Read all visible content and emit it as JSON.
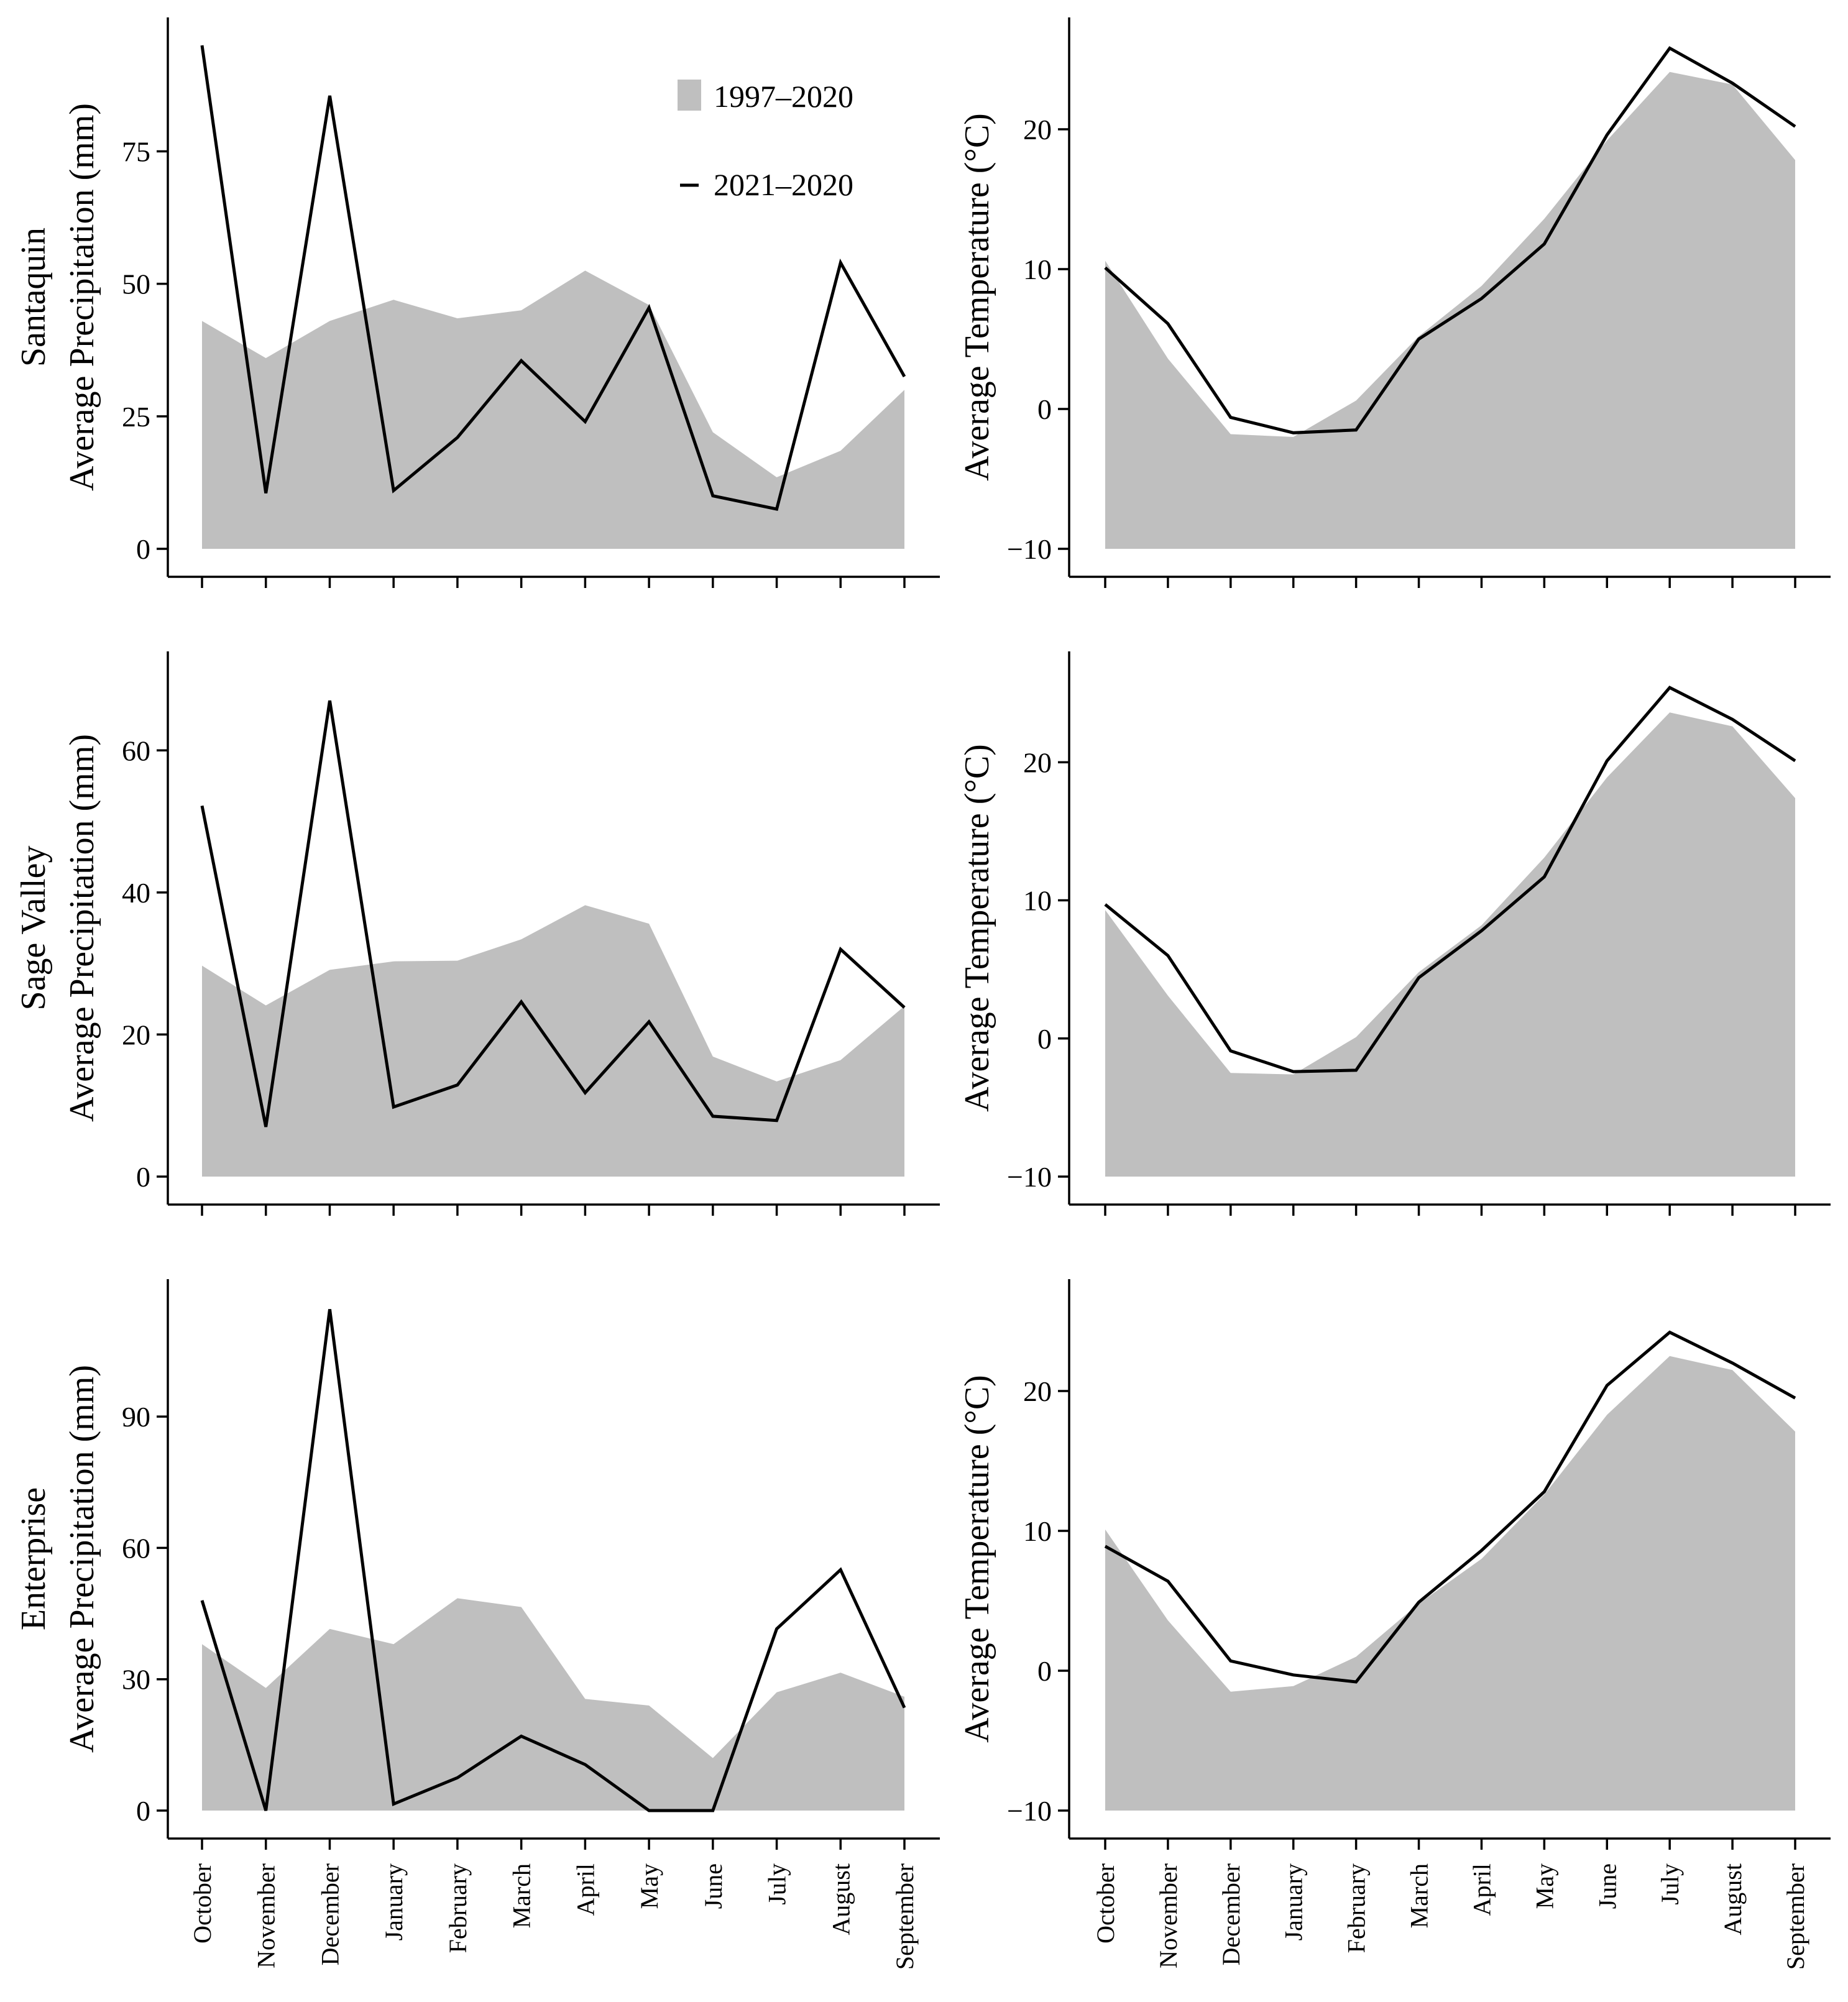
{
  "legend": {
    "area_label": "1997–2020",
    "line_label": "2021–2020"
  },
  "colors": {
    "area": "#bfbfbf",
    "line": "#000000",
    "axis": "#000000"
  },
  "months": [
    "October",
    "November",
    "December",
    "January",
    "February",
    "March",
    "April",
    "May",
    "June",
    "July",
    "August",
    "September"
  ],
  "chart_data": [
    {
      "type": "area",
      "site": "Santaquin",
      "ylabel": "Average Precipitation (mm)",
      "ylim": [
        0,
        95
      ],
      "yticks": [
        0,
        25,
        50,
        75
      ],
      "legend_position": "top-right",
      "series": [
        {
          "name": "1997–2020",
          "kind": "area",
          "values": [
            43,
            36,
            43,
            47,
            43.5,
            45,
            52.5,
            46,
            22,
            13.5,
            18.5,
            30
          ]
        },
        {
          "name": "2021–2020",
          "kind": "line",
          "values": [
            95,
            10.5,
            85.5,
            11,
            21,
            35.5,
            24,
            45.5,
            10,
            7.5,
            54,
            32.5
          ]
        }
      ]
    },
    {
      "type": "area",
      "ylabel": "Average Temperature (°C)",
      "ylim": [
        -10,
        26
      ],
      "yticks": [
        -10,
        0,
        10,
        20
      ],
      "series": [
        {
          "name": "1997–2020",
          "kind": "area",
          "values": [
            10.6,
            3.6,
            -1.8,
            -2,
            0.6,
            5.2,
            8.8,
            13.6,
            19.2,
            24.1,
            23.2,
            17.8
          ]
        },
        {
          "name": "2021–2020",
          "kind": "line",
          "values": [
            10.1,
            6.1,
            -0.6,
            -1.7,
            -1.5,
            5,
            7.9,
            11.8,
            19.6,
            25.8,
            23.3,
            20.2
          ]
        }
      ]
    },
    {
      "type": "area",
      "site": "Sage Valley",
      "ylabel": "Average Precipitation (mm)",
      "ylim": [
        0,
        70
      ],
      "yticks": [
        0,
        20,
        40,
        60
      ],
      "series": [
        {
          "name": "1997–2020",
          "kind": "area",
          "values": [
            29.7,
            24.1,
            29.1,
            30.3,
            30.4,
            33.4,
            38.2,
            35.6,
            16.9,
            13.4,
            16.4,
            24
          ]
        },
        {
          "name": "2021–2020",
          "kind": "line",
          "values": [
            52.2,
            7,
            67,
            9.8,
            12.9,
            24.6,
            11.8,
            21.8,
            8.5,
            7.9,
            32,
            23.8
          ]
        }
      ]
    },
    {
      "type": "area",
      "ylabel": "Average Temperature (°C)",
      "ylim": [
        -10,
        26
      ],
      "yticks": [
        -10,
        0,
        10,
        20
      ],
      "series": [
        {
          "name": "1997–2020",
          "kind": "area",
          "values": [
            9.3,
            3.1,
            -2.5,
            -2.6,
            0.1,
            4.8,
            8.2,
            13.1,
            18.9,
            23.6,
            22.6,
            17.4
          ]
        },
        {
          "name": "2021–2020",
          "kind": "line",
          "values": [
            9.7,
            6,
            -0.9,
            -2.4,
            -2.3,
            4.4,
            7.8,
            11.7,
            20.1,
            25.4,
            23.1,
            20.1
          ]
        }
      ]
    },
    {
      "type": "area",
      "site": "Enterprise",
      "ylabel": "Average Precipitation (mm)",
      "ylim": [
        0,
        115
      ],
      "yticks": [
        0,
        30,
        60,
        90
      ],
      "series": [
        {
          "name": "1997–2020",
          "kind": "area",
          "values": [
            38,
            28,
            41.5,
            38,
            48.5,
            46.5,
            25.5,
            24,
            12,
            27,
            31.5,
            26
          ]
        },
        {
          "name": "2021–2020",
          "kind": "line",
          "values": [
            48,
            0,
            114.5,
            1.5,
            7.5,
            17,
            10.5,
            0,
            0,
            41.5,
            55,
            23.5
          ]
        }
      ]
    },
    {
      "type": "area",
      "ylabel": "Average Temperature (°C)",
      "ylim": [
        -10,
        26
      ],
      "yticks": [
        -10,
        0,
        10,
        20
      ],
      "series": [
        {
          "name": "1997–2020",
          "kind": "area",
          "values": [
            10.1,
            3.6,
            -1.5,
            -1.1,
            1,
            4.8,
            8,
            12.6,
            18.3,
            22.5,
            21.5,
            17.1
          ]
        },
        {
          "name": "2021–2020",
          "kind": "line",
          "values": [
            8.9,
            6.4,
            0.7,
            -0.3,
            -0.8,
            4.9,
            8.6,
            12.8,
            20.4,
            24.2,
            22,
            19.5
          ]
        }
      ]
    }
  ]
}
